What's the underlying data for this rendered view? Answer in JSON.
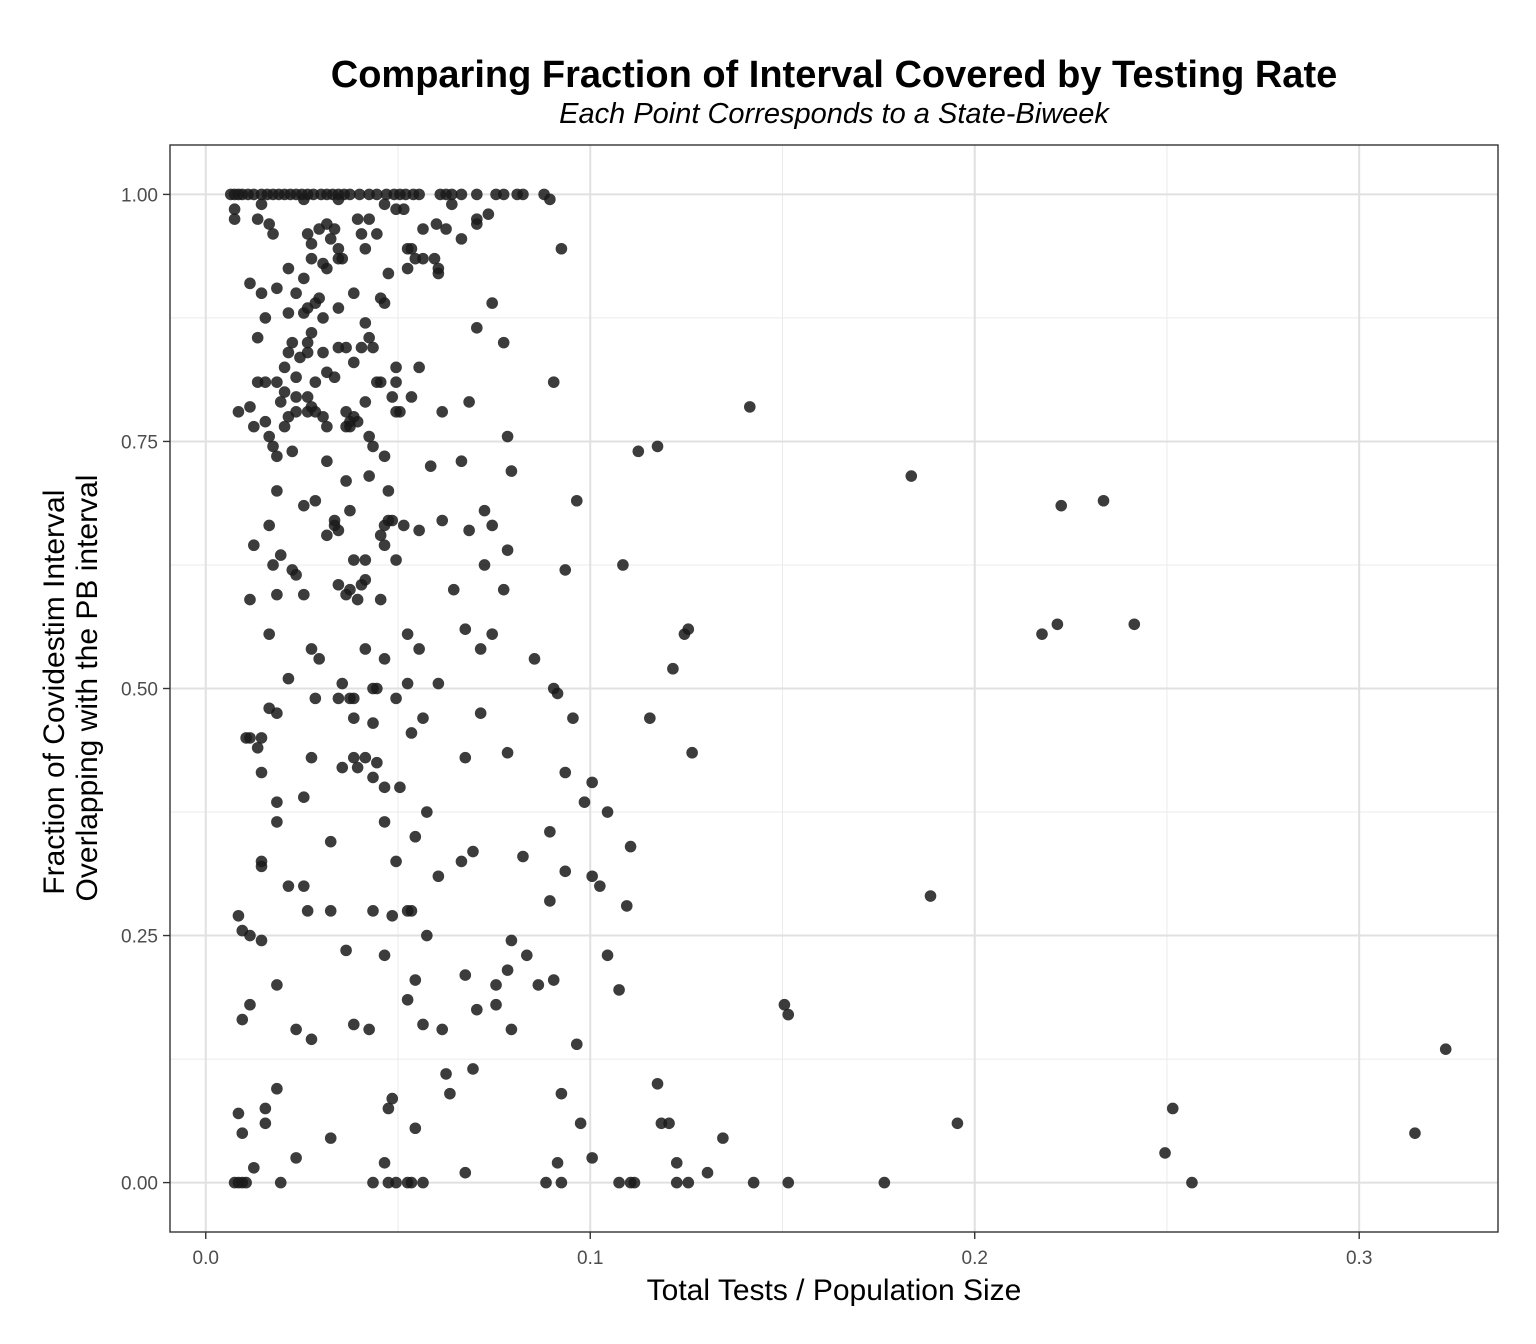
{
  "chart_data": {
    "type": "scatter",
    "title": "Comparing Fraction of Interval Covered by Testing Rate",
    "subtitle": "Each Point Corresponds to a State-Biweek",
    "xlabel": "Total Tests / Population Size",
    "ylabel_lines": [
      "Fraction of Covidestim Interval",
      "Overlapping with the PB interval"
    ],
    "xlim": [
      -0.0093,
      0.3361
    ],
    "ylim": [
      -0.05,
      1.05
    ],
    "x_ticks": [
      0.0,
      0.1,
      0.2,
      0.3
    ],
    "x_tick_labels": [
      "0.0",
      "0.1",
      "0.2",
      "0.3"
    ],
    "y_ticks": [
      0.0,
      0.25,
      0.5,
      0.75,
      1.0
    ],
    "y_tick_labels": [
      "0.00",
      "0.25",
      "0.50",
      "0.75",
      "1.00"
    ],
    "grid": true,
    "point_color": "#1a1a1a",
    "points": [
      [
        0.0065,
        1.0
      ],
      [
        0.0075,
        1.0
      ],
      [
        0.0085,
        1.0
      ],
      [
        0.0095,
        1.0
      ],
      [
        0.011,
        1.0
      ],
      [
        0.0125,
        1.0
      ],
      [
        0.0145,
        1.0
      ],
      [
        0.016,
        1.0
      ],
      [
        0.0175,
        1.0
      ],
      [
        0.019,
        1.0
      ],
      [
        0.0205,
        1.0
      ],
      [
        0.022,
        1.0
      ],
      [
        0.0235,
        1.0
      ],
      [
        0.025,
        1.0
      ],
      [
        0.0265,
        1.0
      ],
      [
        0.028,
        1.0
      ],
      [
        0.03,
        1.0
      ],
      [
        0.0315,
        1.0
      ],
      [
        0.033,
        1.0
      ],
      [
        0.0345,
        1.0
      ],
      [
        0.036,
        1.0
      ],
      [
        0.0375,
        1.0
      ],
      [
        0.04,
        1.0
      ],
      [
        0.0425,
        1.0
      ],
      [
        0.0445,
        1.0
      ],
      [
        0.047,
        1.0
      ],
      [
        0.049,
        1.0
      ],
      [
        0.0505,
        1.0
      ],
      [
        0.052,
        1.0
      ],
      [
        0.054,
        1.0
      ],
      [
        0.0555,
        1.0
      ],
      [
        0.061,
        1.0
      ],
      [
        0.0625,
        1.0
      ],
      [
        0.064,
        1.0
      ],
      [
        0.0665,
        1.0
      ],
      [
        0.0705,
        1.0
      ],
      [
        0.0755,
        1.0
      ],
      [
        0.0775,
        1.0
      ],
      [
        0.081,
        1.0
      ],
      [
        0.0825,
        1.0
      ],
      [
        0.088,
        1.0
      ],
      [
        0.0075,
        0.985
      ],
      [
        0.0145,
        0.99
      ],
      [
        0.0255,
        0.995
      ],
      [
        0.0345,
        0.995
      ],
      [
        0.0465,
        0.99
      ],
      [
        0.0495,
        0.985
      ],
      [
        0.0515,
        0.985
      ],
      [
        0.064,
        0.99
      ],
      [
        0.0895,
        0.995
      ],
      [
        0.0075,
        0.975
      ],
      [
        0.0135,
        0.975
      ],
      [
        0.0165,
        0.97
      ],
      [
        0.0315,
        0.97
      ],
      [
        0.0335,
        0.965
      ],
      [
        0.0395,
        0.975
      ],
      [
        0.0425,
        0.975
      ],
      [
        0.0565,
        0.965
      ],
      [
        0.06,
        0.97
      ],
      [
        0.0625,
        0.965
      ],
      [
        0.0705,
        0.975
      ],
      [
        0.0735,
        0.98
      ],
      [
        0.0175,
        0.96
      ],
      [
        0.0265,
        0.96
      ],
      [
        0.0295,
        0.965
      ],
      [
        0.0325,
        0.955
      ],
      [
        0.0405,
        0.96
      ],
      [
        0.0445,
        0.96
      ],
      [
        0.0275,
        0.95
      ],
      [
        0.0345,
        0.945
      ],
      [
        0.0415,
        0.945
      ],
      [
        0.0525,
        0.945
      ],
      [
        0.0535,
        0.945
      ],
      [
        0.0545,
        0.935
      ],
      [
        0.0565,
        0.935
      ],
      [
        0.0595,
        0.935
      ],
      [
        0.0665,
        0.955
      ],
      [
        0.0705,
        0.97
      ],
      [
        0.0925,
        0.945
      ],
      [
        0.0315,
        0.925
      ],
      [
        0.0345,
        0.935
      ],
      [
        0.0355,
        0.935
      ],
      [
        0.0525,
        0.925
      ],
      [
        0.0605,
        0.925
      ],
      [
        0.0605,
        0.92
      ],
      [
        0.0215,
        0.925
      ],
      [
        0.0255,
        0.915
      ],
      [
        0.0475,
        0.92
      ],
      [
        0.0275,
        0.935
      ],
      [
        0.0305,
        0.93
      ],
      [
        0.0115,
        0.91
      ],
      [
        0.0145,
        0.9
      ],
      [
        0.0185,
        0.905
      ],
      [
        0.0235,
        0.9
      ],
      [
        0.0265,
        0.885
      ],
      [
        0.0285,
        0.89
      ],
      [
        0.0295,
        0.895
      ],
      [
        0.0345,
        0.885
      ],
      [
        0.0385,
        0.9
      ],
      [
        0.0455,
        0.895
      ],
      [
        0.0465,
        0.89
      ],
      [
        0.0745,
        0.89
      ],
      [
        0.0155,
        0.875
      ],
      [
        0.0215,
        0.88
      ],
      [
        0.0255,
        0.88
      ],
      [
        0.0305,
        0.875
      ],
      [
        0.0415,
        0.87
      ],
      [
        0.0705,
        0.865
      ],
      [
        0.0135,
        0.855
      ],
      [
        0.0225,
        0.85
      ],
      [
        0.0265,
        0.85
      ],
      [
        0.0275,
        0.86
      ],
      [
        0.0345,
        0.845
      ],
      [
        0.0425,
        0.855
      ],
      [
        0.0435,
        0.845
      ],
      [
        0.0775,
        0.85
      ],
      [
        0.0215,
        0.84
      ],
      [
        0.0245,
        0.835
      ],
      [
        0.0265,
        0.84
      ],
      [
        0.0305,
        0.84
      ],
      [
        0.0365,
        0.845
      ],
      [
        0.0405,
        0.845
      ],
      [
        0.0495,
        0.825
      ],
      [
        0.0555,
        0.825
      ],
      [
        0.0385,
        0.83
      ],
      [
        0.0205,
        0.825
      ],
      [
        0.0235,
        0.815
      ],
      [
        0.0315,
        0.82
      ],
      [
        0.0335,
        0.815
      ],
      [
        0.0135,
        0.81
      ],
      [
        0.0155,
        0.81
      ],
      [
        0.0185,
        0.81
      ],
      [
        0.0205,
        0.8
      ],
      [
        0.0285,
        0.81
      ],
      [
        0.0445,
        0.81
      ],
      [
        0.0455,
        0.81
      ],
      [
        0.0495,
        0.81
      ],
      [
        0.0905,
        0.81
      ],
      [
        0.0195,
        0.79
      ],
      [
        0.0235,
        0.795
      ],
      [
        0.0265,
        0.795
      ],
      [
        0.0275,
        0.785
      ],
      [
        0.0305,
        0.775
      ],
      [
        0.0365,
        0.78
      ],
      [
        0.0385,
        0.775
      ],
      [
        0.0415,
        0.79
      ],
      [
        0.0485,
        0.795
      ],
      [
        0.0535,
        0.795
      ],
      [
        0.0685,
        0.79
      ],
      [
        0.0615,
        0.78
      ],
      [
        0.0495,
        0.78
      ],
      [
        0.0505,
        0.78
      ],
      [
        0.0285,
        0.78
      ],
      [
        0.0235,
        0.78
      ],
      [
        0.0215,
        0.775
      ],
      [
        0.1415,
        0.785
      ],
      [
        0.0085,
        0.78
      ],
      [
        0.0115,
        0.785
      ],
      [
        0.0125,
        0.765
      ],
      [
        0.0155,
        0.77
      ],
      [
        0.0205,
        0.765
      ],
      [
        0.0265,
        0.78
      ],
      [
        0.0375,
        0.77
      ],
      [
        0.0395,
        0.77
      ],
      [
        0.0315,
        0.765
      ],
      [
        0.0365,
        0.765
      ],
      [
        0.0375,
        0.765
      ],
      [
        0.0165,
        0.755
      ],
      [
        0.0425,
        0.755
      ],
      [
        0.0785,
        0.755
      ],
      [
        0.1175,
        0.745
      ],
      [
        0.0175,
        0.745
      ],
      [
        0.0185,
        0.735
      ],
      [
        0.0225,
        0.74
      ],
      [
        0.0435,
        0.745
      ],
      [
        0.0465,
        0.735
      ],
      [
        0.0315,
        0.73
      ],
      [
        0.0665,
        0.73
      ],
      [
        0.0585,
        0.725
      ],
      [
        0.0795,
        0.72
      ],
      [
        0.1125,
        0.74
      ],
      [
        0.0425,
        0.715
      ],
      [
        0.0365,
        0.71
      ],
      [
        0.1835,
        0.715
      ],
      [
        0.0185,
        0.7
      ],
      [
        0.0475,
        0.7
      ],
      [
        0.0285,
        0.69
      ],
      [
        0.0255,
        0.685
      ],
      [
        0.0375,
        0.68
      ],
      [
        0.0725,
        0.68
      ],
      [
        0.0965,
        0.69
      ],
      [
        0.2225,
        0.685
      ],
      [
        0.2335,
        0.69
      ],
      [
        0.0165,
        0.665
      ],
      [
        0.0335,
        0.665
      ],
      [
        0.0335,
        0.67
      ],
      [
        0.0465,
        0.665
      ],
      [
        0.0475,
        0.67
      ],
      [
        0.0485,
        0.67
      ],
      [
        0.0515,
        0.665
      ],
      [
        0.0555,
        0.66
      ],
      [
        0.0615,
        0.67
      ],
      [
        0.0685,
        0.66
      ],
      [
        0.0745,
        0.665
      ],
      [
        0.0315,
        0.655
      ],
      [
        0.0345,
        0.66
      ],
      [
        0.0455,
        0.655
      ],
      [
        0.0465,
        0.645
      ],
      [
        0.0125,
        0.645
      ],
      [
        0.0195,
        0.635
      ],
      [
        0.0175,
        0.625
      ],
      [
        0.0225,
        0.62
      ],
      [
        0.0235,
        0.615
      ],
      [
        0.0345,
        0.605
      ],
      [
        0.0385,
        0.63
      ],
      [
        0.0415,
        0.63
      ],
      [
        0.0415,
        0.61
      ],
      [
        0.0405,
        0.605
      ],
      [
        0.0495,
        0.63
      ],
      [
        0.0785,
        0.64
      ],
      [
        0.0725,
        0.625
      ],
      [
        0.0935,
        0.62
      ],
      [
        0.1085,
        0.625
      ],
      [
        0.0115,
        0.59
      ],
      [
        0.0185,
        0.595
      ],
      [
        0.0255,
        0.595
      ],
      [
        0.0365,
        0.595
      ],
      [
        0.0375,
        0.6
      ],
      [
        0.0395,
        0.59
      ],
      [
        0.0455,
        0.59
      ],
      [
        0.0645,
        0.6
      ],
      [
        0.0775,
        0.6
      ],
      [
        0.0165,
        0.555
      ],
      [
        0.0525,
        0.555
      ],
      [
        0.0555,
        0.54
      ],
      [
        0.0275,
        0.54
      ],
      [
        0.0295,
        0.53
      ],
      [
        0.0415,
        0.54
      ],
      [
        0.0465,
        0.53
      ],
      [
        0.0675,
        0.56
      ],
      [
        0.0715,
        0.54
      ],
      [
        0.0745,
        0.555
      ],
      [
        0.0855,
        0.53
      ],
      [
        0.1245,
        0.555
      ],
      [
        0.1255,
        0.56
      ],
      [
        0.1215,
        0.52
      ],
      [
        0.2175,
        0.555
      ],
      [
        0.2215,
        0.565
      ],
      [
        0.2415,
        0.565
      ],
      [
        0.0215,
        0.51
      ],
      [
        0.0355,
        0.505
      ],
      [
        0.0435,
        0.5
      ],
      [
        0.0445,
        0.5
      ],
      [
        0.0525,
        0.505
      ],
      [
        0.0605,
        0.505
      ],
      [
        0.0285,
        0.49
      ],
      [
        0.0345,
        0.49
      ],
      [
        0.0375,
        0.49
      ],
      [
        0.0385,
        0.49
      ],
      [
        0.0495,
        0.49
      ],
      [
        0.0905,
        0.5
      ],
      [
        0.0915,
        0.495
      ],
      [
        0.0165,
        0.48
      ],
      [
        0.0185,
        0.475
      ],
      [
        0.0385,
        0.47
      ],
      [
        0.0435,
        0.465
      ],
      [
        0.0565,
        0.47
      ],
      [
        0.0715,
        0.475
      ],
      [
        0.0955,
        0.47
      ],
      [
        0.1155,
        0.47
      ],
      [
        0.0535,
        0.455
      ],
      [
        0.0105,
        0.45
      ],
      [
        0.0115,
        0.45
      ],
      [
        0.0145,
        0.45
      ],
      [
        0.0135,
        0.44
      ],
      [
        0.0275,
        0.43
      ],
      [
        0.0385,
        0.43
      ],
      [
        0.0415,
        0.43
      ],
      [
        0.0445,
        0.425
      ],
      [
        0.0675,
        0.43
      ],
      [
        0.0785,
        0.435
      ],
      [
        0.1265,
        0.435
      ],
      [
        0.0145,
        0.415
      ],
      [
        0.0355,
        0.42
      ],
      [
        0.0395,
        0.42
      ],
      [
        0.0935,
        0.415
      ],
      [
        0.0435,
        0.41
      ],
      [
        0.1005,
        0.405
      ],
      [
        0.0465,
        0.4
      ],
      [
        0.0505,
        0.4
      ],
      [
        0.0185,
        0.385
      ],
      [
        0.0255,
        0.39
      ],
      [
        0.0575,
        0.375
      ],
      [
        0.0985,
        0.385
      ],
      [
        0.1045,
        0.375
      ],
      [
        0.0185,
        0.365
      ],
      [
        0.0465,
        0.365
      ],
      [
        0.0545,
        0.35
      ],
      [
        0.0325,
        0.345
      ],
      [
        0.0895,
        0.355
      ],
      [
        0.1105,
        0.34
      ],
      [
        0.0695,
        0.335
      ],
      [
        0.0825,
        0.33
      ],
      [
        0.0495,
        0.325
      ],
      [
        0.0665,
        0.325
      ],
      [
        0.0145,
        0.325
      ],
      [
        0.0145,
        0.32
      ],
      [
        0.0605,
        0.31
      ],
      [
        0.0935,
        0.315
      ],
      [
        0.1005,
        0.31
      ],
      [
        0.0215,
        0.3
      ],
      [
        0.0255,
        0.3
      ],
      [
        0.1025,
        0.3
      ],
      [
        0.0895,
        0.285
      ],
      [
        0.1095,
        0.28
      ],
      [
        0.1885,
        0.29
      ],
      [
        0.0265,
        0.275
      ],
      [
        0.0325,
        0.275
      ],
      [
        0.0435,
        0.275
      ],
      [
        0.0485,
        0.27
      ],
      [
        0.0525,
        0.275
      ],
      [
        0.0535,
        0.275
      ],
      [
        0.0085,
        0.27
      ],
      [
        0.0575,
        0.25
      ],
      [
        0.0095,
        0.255
      ],
      [
        0.0115,
        0.25
      ],
      [
        0.0145,
        0.245
      ],
      [
        0.0365,
        0.235
      ],
      [
        0.0795,
        0.245
      ],
      [
        0.0835,
        0.23
      ],
      [
        0.0465,
        0.23
      ],
      [
        0.1045,
        0.23
      ],
      [
        0.0675,
        0.21
      ],
      [
        0.0545,
        0.205
      ],
      [
        0.0755,
        0.2
      ],
      [
        0.0785,
        0.215
      ],
      [
        0.0865,
        0.2
      ],
      [
        0.0905,
        0.205
      ],
      [
        0.0185,
        0.2
      ],
      [
        0.0525,
        0.185
      ],
      [
        0.0705,
        0.175
      ],
      [
        0.0755,
        0.18
      ],
      [
        0.1075,
        0.195
      ],
      [
        0.1505,
        0.18
      ],
      [
        0.1515,
        0.17
      ],
      [
        0.0115,
        0.18
      ],
      [
        0.0095,
        0.165
      ],
      [
        0.0235,
        0.155
      ],
      [
        0.0385,
        0.16
      ],
      [
        0.0425,
        0.155
      ],
      [
        0.0565,
        0.16
      ],
      [
        0.0615,
        0.155
      ],
      [
        0.0795,
        0.155
      ],
      [
        0.0275,
        0.145
      ],
      [
        0.0965,
        0.14
      ],
      [
        0.3225,
        0.135
      ],
      [
        0.0625,
        0.11
      ],
      [
        0.0695,
        0.115
      ],
      [
        0.1175,
        0.1
      ],
      [
        0.0635,
        0.09
      ],
      [
        0.0485,
        0.085
      ],
      [
        0.0925,
        0.09
      ],
      [
        0.0185,
        0.095
      ],
      [
        0.0475,
        0.075
      ],
      [
        0.0155,
        0.075
      ],
      [
        0.0085,
        0.07
      ],
      [
        0.2515,
        0.075
      ],
      [
        0.0155,
        0.06
      ],
      [
        0.0545,
        0.055
      ],
      [
        0.0975,
        0.06
      ],
      [
        0.1185,
        0.06
      ],
      [
        0.1205,
        0.06
      ],
      [
        0.1955,
        0.06
      ],
      [
        0.0095,
        0.05
      ],
      [
        0.0325,
        0.045
      ],
      [
        0.1345,
        0.045
      ],
      [
        0.3145,
        0.05
      ],
      [
        0.2495,
        0.03
      ],
      [
        0.0235,
        0.025
      ],
      [
        0.1005,
        0.025
      ],
      [
        0.1225,
        0.02
      ],
      [
        0.0465,
        0.02
      ],
      [
        0.0915,
        0.02
      ],
      [
        0.0125,
        0.015
      ],
      [
        0.0675,
        0.01
      ],
      [
        0.1305,
        0.01
      ],
      [
        0.0075,
        0.0
      ],
      [
        0.0085,
        0.0
      ],
      [
        0.0095,
        0.0
      ],
      [
        0.0105,
        0.0
      ],
      [
        0.0195,
        0.0
      ],
      [
        0.0435,
        0.0
      ],
      [
        0.0475,
        0.0
      ],
      [
        0.0495,
        0.0
      ],
      [
        0.0525,
        0.0
      ],
      [
        0.0535,
        0.0
      ],
      [
        0.0565,
        0.0
      ],
      [
        0.0885,
        0.0
      ],
      [
        0.0925,
        0.0
      ],
      [
        0.1075,
        0.0
      ],
      [
        0.1105,
        0.0
      ],
      [
        0.1115,
        0.0
      ],
      [
        0.1225,
        0.0
      ],
      [
        0.1255,
        0.0
      ],
      [
        0.1425,
        0.0
      ],
      [
        0.1515,
        0.0
      ],
      [
        0.1765,
        0.0
      ],
      [
        0.2565,
        0.0
      ]
    ]
  }
}
